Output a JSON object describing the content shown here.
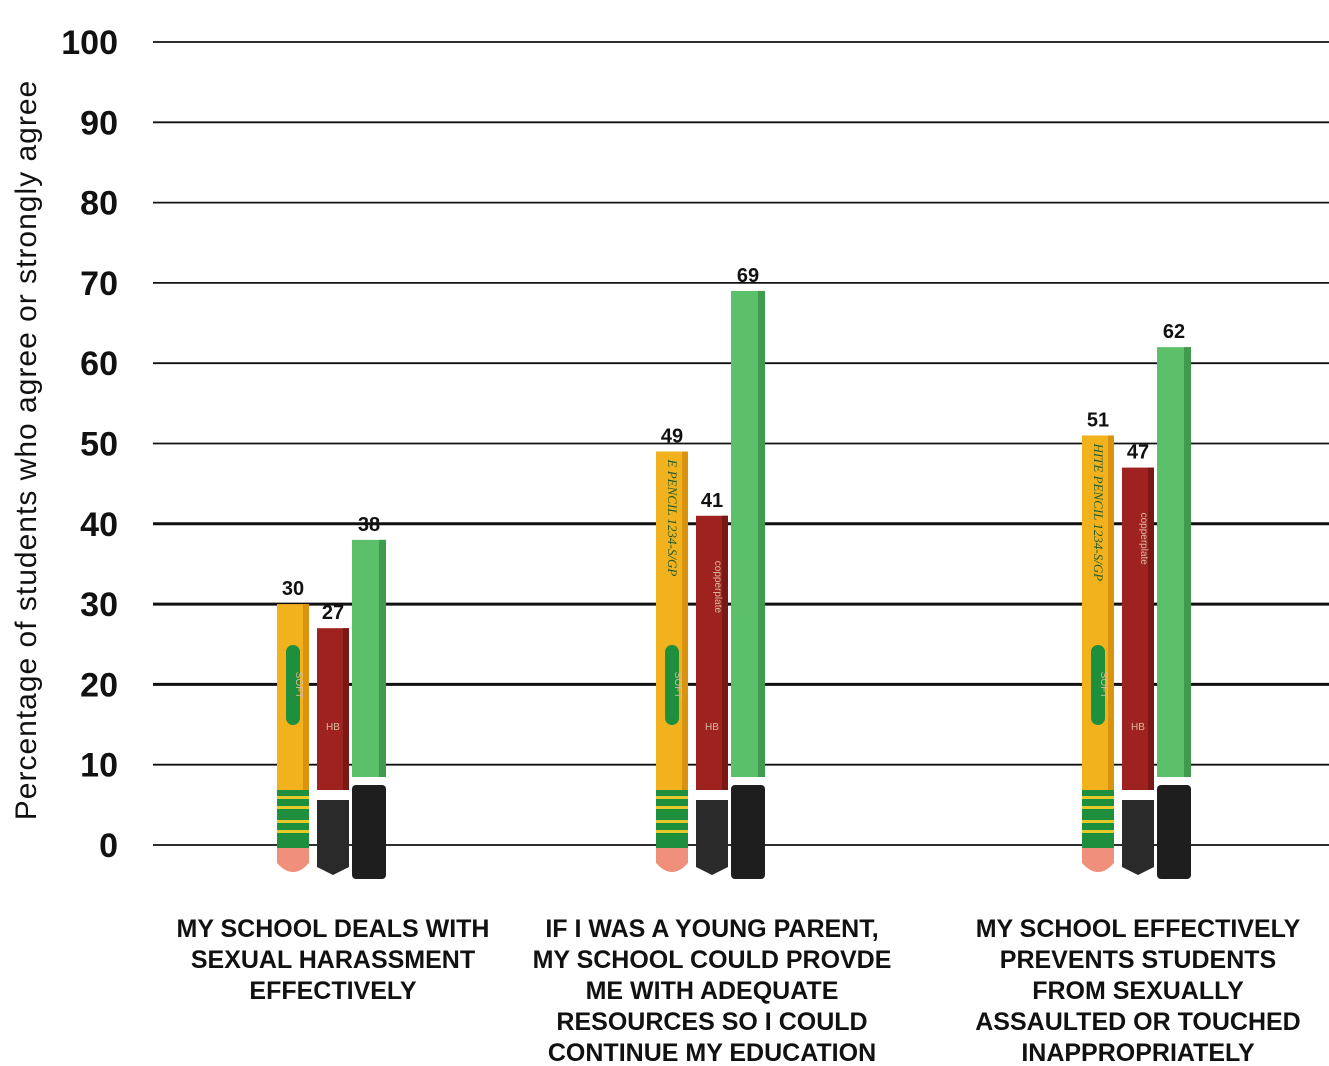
{
  "chart_data": {
    "type": "bar",
    "ylabel": "Percentage of students who agree or strongly agree",
    "ylim": [
      0,
      100
    ],
    "yticks": [
      0,
      10,
      20,
      30,
      40,
      50,
      60,
      70,
      80,
      90,
      100
    ],
    "grid": true,
    "categories": [
      [
        "MY SCHOOL DEALS WITH",
        "SEXUAL HARASSMENT",
        "EFFECTIVELY"
      ],
      [
        "IF I WAS A YOUNG PARENT,",
        "MY SCHOOL COULD PROVDE",
        "ME WITH ADEQUATE",
        "RESOURCES SO I COULD",
        "CONTINUE MY EDUCATION"
      ],
      [
        "MY SCHOOL EFFECTIVELY",
        "PREVENTS STUDENTS",
        "FROM SEXUALLY",
        "ASSAULTED OR TOUCHED",
        "INAPPROPRIATELY"
      ]
    ],
    "series": [
      {
        "values": [
          30,
          49,
          51
        ],
        "color": "#f2b21e"
      },
      {
        "values": [
          27,
          41,
          47
        ],
        "color": "#9e2320"
      },
      {
        "values": [
          38,
          69,
          62
        ],
        "color": "#5cbf6a"
      }
    ]
  },
  "pencil_decor": {
    "yellow_text": "E PENCIL 1234-S/GP",
    "yellow_text_long": "HITE PENCIL 1234-S/GP",
    "soft_label": "SOFT",
    "copper_label": "copperplate",
    "hb_label": "HB"
  }
}
